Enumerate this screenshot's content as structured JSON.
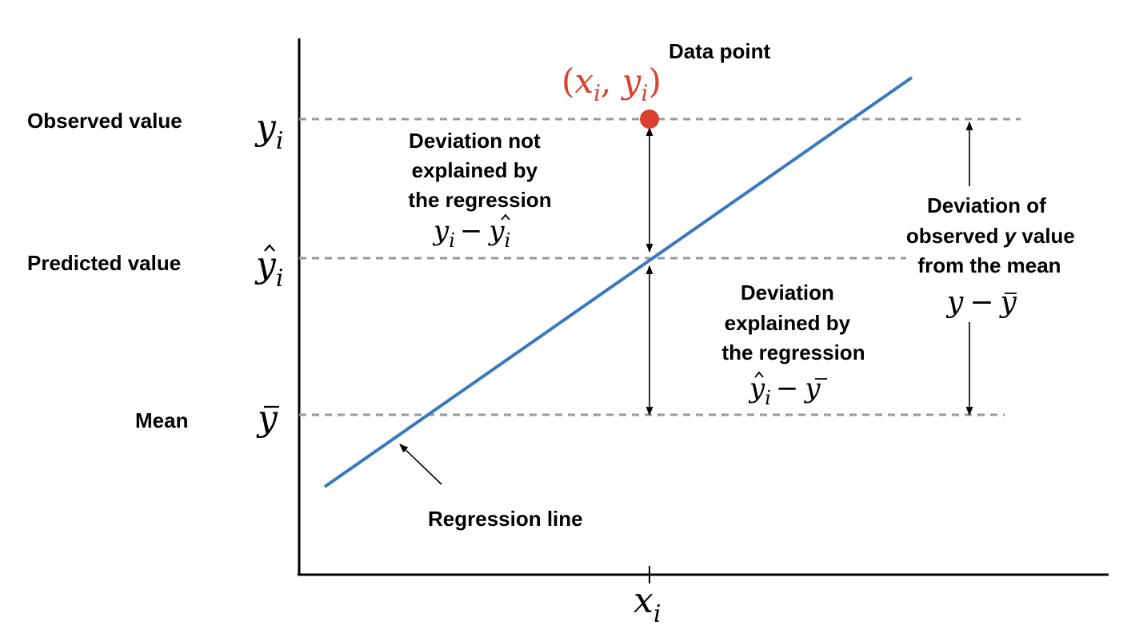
{
  "colors": {
    "regression_line": "#3a78c0",
    "data_point": "#d9402e",
    "guide_line": "#999999",
    "axis": "#000000"
  },
  "labels": {
    "observed_value": "Observed value",
    "predicted_value": "Predicted value",
    "mean": "Mean",
    "data_point": "Data point",
    "regression_line": "Regression line",
    "unexplained": [
      "Deviation not",
      "explained by",
      "the regression"
    ],
    "explained": [
      "Deviation",
      "explained by",
      "the regression"
    ],
    "total": [
      "Deviation of",
      "observed ",
      "y",
      " value",
      "from the mean"
    ]
  },
  "math": {
    "point_open": "(",
    "point_x": "x",
    "point_sep": ", ",
    "point_y": "y",
    "point_close": ")",
    "sub_i": "i",
    "y": "y",
    "x": "x",
    "minus": "−"
  }
}
